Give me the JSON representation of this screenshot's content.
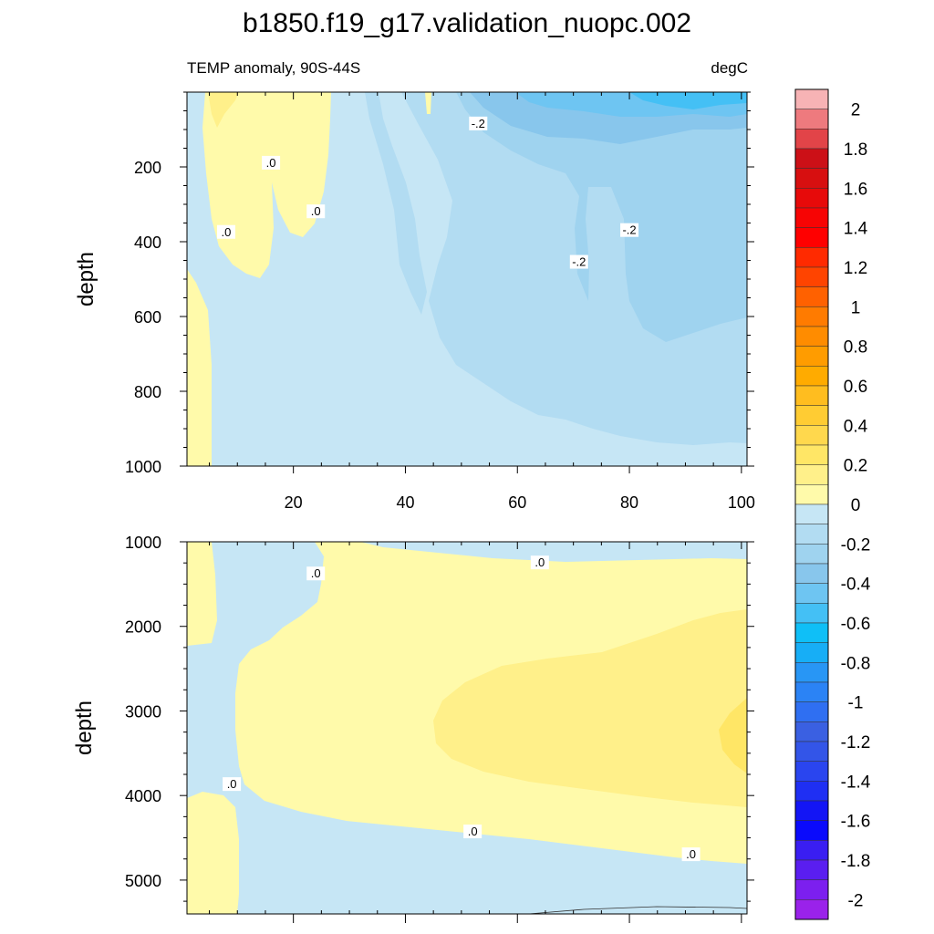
{
  "title": "b1850.f19_g17.validation_nuopc.002",
  "chart_data": [
    {
      "type": "contour",
      "panel": "upper",
      "subtitle_left": "TEMP anomaly, 90S-44S",
      "subtitle_right": "degC",
      "ylabel": "depth",
      "xlim": [
        1,
        101
      ],
      "ylim": [
        0,
        1000
      ],
      "y_reversed": true,
      "xticks": [
        20,
        40,
        60,
        80,
        100
      ],
      "yticks": [
        200,
        400,
        600,
        800,
        1000
      ],
      "contour_labels": [
        {
          "text": "-.2",
          "x": 53,
          "y": 85
        },
        {
          "text": "-.2",
          "x": 80,
          "y": 370
        },
        {
          "text": "-.2",
          "x": 71,
          "y": 455
        },
        {
          "text": ".0",
          "x": 16,
          "y": 190
        },
        {
          "text": ".0",
          "x": 24,
          "y": 320
        },
        {
          "text": ".0",
          "x": 8,
          "y": 375
        }
      ]
    },
    {
      "type": "contour",
      "panel": "lower",
      "ylabel": "depth",
      "xlim": [
        1,
        101
      ],
      "ylim": [
        1000,
        5400
      ],
      "y_reversed": true,
      "xticks": [
        20,
        40,
        60,
        80,
        100
      ],
      "yticks": [
        1000,
        2000,
        3000,
        4000,
        5000
      ],
      "contour_labels": [
        {
          "text": ".0",
          "x": 24,
          "y": 1380
        },
        {
          "text": ".0",
          "x": 64,
          "y": 1250
        },
        {
          "text": ".0",
          "x": 9,
          "y": 3870
        },
        {
          "text": ".0",
          "x": 52,
          "y": 4430
        },
        {
          "text": ".0",
          "x": 91,
          "y": 4700
        }
      ]
    }
  ],
  "colorbar": {
    "range": [
      -2.1,
      2.1
    ],
    "labels": [
      "2",
      "1.8",
      "1.6",
      "1.4",
      "1.2",
      "1",
      "0.8",
      "0.6",
      "0.4",
      "0.2",
      "0",
      "-0.2",
      "-0.4",
      "-0.6",
      "-0.8",
      "-1",
      "-1.2",
      "-1.4",
      "-1.6",
      "-1.8",
      "-2"
    ],
    "label_values": [
      2,
      1.8,
      1.6,
      1.4,
      1.2,
      1,
      0.8,
      0.6,
      0.4,
      0.2,
      0,
      -0.2,
      -0.4,
      -0.6,
      -0.8,
      -1,
      -1.2,
      -1.4,
      -1.6,
      -1.8,
      -2
    ],
    "colors": [
      "#f7b3b5",
      "#ee7a7e",
      "#e24448",
      "#cc1017",
      "#d70f10",
      "#e70a0a",
      "#f70404",
      "#ff0000",
      "#ff2a00",
      "#ff4400",
      "#ff6100",
      "#ff7b00",
      "#ff8c00",
      "#ff9c00",
      "#ffab00",
      "#ffbd1f",
      "#ffcc33",
      "#ffd84d",
      "#ffe666",
      "#fff08a",
      "#fffaaa",
      "#c6e6f5",
      "#b2dcf2",
      "#9fd3ef",
      "#88c6ec",
      "#6ec5f2",
      "#44c0f5",
      "#0fbff7",
      "#17aef6",
      "#2896f5",
      "#2b83f5",
      "#2f6ff2",
      "#3a60e2",
      "#3355e8",
      "#2a45ef",
      "#1f2ff3",
      "#1315f5",
      "#0a0afc",
      "#3a1ef2",
      "#5a1ef0",
      "#7c1fef",
      "#9a22ea"
    ]
  }
}
